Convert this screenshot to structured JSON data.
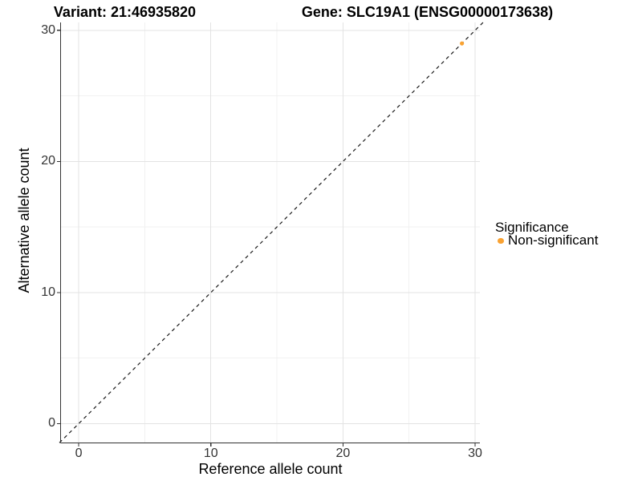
{
  "chart_data": {
    "type": "scatter",
    "titles": {
      "left": "Variant: 21:46935820",
      "right": "Gene: SLC19A1 (ENSG00000173638)"
    },
    "xlabel": "Reference allele count",
    "ylabel": "Alternative allele count",
    "xlim": [
      -1.37,
      30.36
    ],
    "ylim": [
      -1.47,
      30.6
    ],
    "x_ticks": [
      0,
      10,
      20,
      30
    ],
    "y_ticks": [
      0,
      10,
      20,
      30
    ],
    "x_minor_ticks": [
      5,
      15,
      25
    ],
    "y_minor_ticks": [
      5,
      15,
      25
    ],
    "grid": {
      "major": true,
      "minor": true
    },
    "identity_line": {
      "style": "dashed",
      "equation": "y = x",
      "color": "#1a1a1a"
    },
    "series": [
      {
        "name": "Non-significant",
        "color": "#F9A232",
        "points": [
          {
            "x": 29,
            "y": 29
          }
        ]
      }
    ],
    "legend": {
      "title": "Significance",
      "position": "right",
      "items": [
        {
          "label": "Non-significant",
          "color": "#F9A232"
        }
      ]
    },
    "colors": {
      "major_grid": "#e3e3e3",
      "minor_grid": "#f1f1f1",
      "axis_line": "#333333",
      "point": "#F9A232"
    }
  }
}
